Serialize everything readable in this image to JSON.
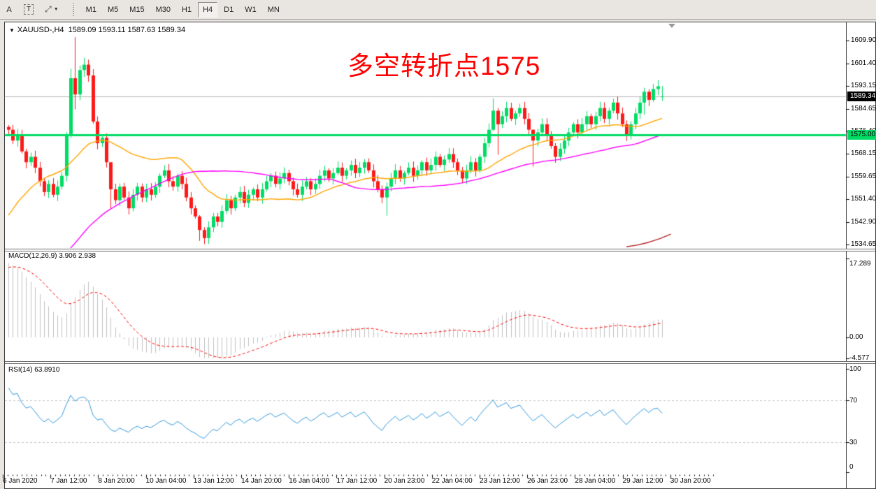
{
  "toolbar": {
    "tools": [
      {
        "label": "A",
        "name": "text-label-tool"
      },
      {
        "label": "T",
        "name": "text-tool"
      },
      {
        "label": "⤢",
        "name": "arrows-tool"
      }
    ],
    "timeframes": [
      {
        "label": "M1",
        "active": false
      },
      {
        "label": "M5",
        "active": false
      },
      {
        "label": "M15",
        "active": false
      },
      {
        "label": "M30",
        "active": false
      },
      {
        "label": "H1",
        "active": false
      },
      {
        "label": "H4",
        "active": true
      },
      {
        "label": "D1",
        "active": false
      },
      {
        "label": "W1",
        "active": false
      },
      {
        "label": "MN",
        "active": false
      }
    ]
  },
  "header": {
    "symbol": "XAUUSD-,H4",
    "ohlc": "1589.09 1593.11 1587.63 1589.34"
  },
  "annotation": {
    "text": "多空转折点1575",
    "color": "#FF0000"
  },
  "badges": {
    "current_price": "1589.34",
    "hline_price": "1575.00"
  },
  "macd_panel": {
    "label": "MACD(12,26,9)",
    "values": "3.906 2.938"
  },
  "rsi_panel": {
    "label": "RSI(14)",
    "value": "63.8910"
  },
  "chart_data": {
    "type": "candlestick+indicators",
    "symbol": "XAUUSD",
    "timeframe": "H4",
    "colors": {
      "bull": "#00DC64",
      "bear": "#FB1A1A",
      "hline": "#00DC64",
      "price_line": "#B4B4B4",
      "ma_fast": "#FFA500",
      "ma_slow": "#FF00FF",
      "ma_long": "#B22222",
      "macd_hist": "#C0C0C0",
      "macd_signal": "#FF0000",
      "rsi_line": "#2E96D9",
      "rsi_levels": "#C4C4C4"
    },
    "price_axis": {
      "ticks": [
        1609.9,
        1601.4,
        1593.15,
        1584.65,
        1576.4,
        1568.15,
        1559.65,
        1551.4,
        1542.9,
        1534.65
      ],
      "tick_labels": [
        "1609.90",
        "1601.40",
        "1593.15",
        "1584.65",
        "1576.40",
        "1568.15",
        "1559.65",
        "1551.40",
        "1542.90",
        "1534.65"
      ],
      "range": [
        1533.4,
        1616.3
      ]
    },
    "hline": {
      "price": 1575.0
    },
    "current_price": 1589.34,
    "macd": {
      "fast": 12,
      "slow": 26,
      "signal": 9,
      "last_main": 3.906,
      "last_signal": 2.938,
      "axis_ticks": [
        17.289,
        0.0,
        -4.577
      ],
      "axis_tick_labels": [
        "17.289",
        "0.00",
        "-4.577"
      ],
      "range": [
        -4.577,
        17.289
      ]
    },
    "rsi": {
      "period": 14,
      "last_value": 63.891,
      "axis_ticks": [
        100,
        70,
        30,
        0
      ],
      "axis_tick_labels": [
        "100",
        "70",
        "30",
        "0"
      ],
      "levels": [
        70,
        30
      ],
      "range": [
        0,
        104.7
      ]
    },
    "time_labels": [
      "6 Jan 2020",
      "7 Jan 12:00",
      "8 Jan 20:00",
      "10 Jan 04:00",
      "13 Jan 12:00",
      "14 Jan 20:00",
      "16 Jan 04:00",
      "17 Jan 12:00",
      "20 Jan 23:00",
      "22 Jan 04:00",
      "23 Jan 12:00",
      "26 Jan 23:00",
      "28 Jan 04:00",
      "29 Jan 12:00",
      "30 Jan 20:00"
    ],
    "preroll_closes": [
      1472,
      1474,
      1471,
      1475,
      1473,
      1476,
      1478,
      1475,
      1477,
      1480,
      1478,
      1481,
      1479,
      1482,
      1480,
      1483,
      1481,
      1484,
      1482,
      1485,
      1486,
      1489,
      1487,
      1492,
      1495,
      1493,
      1498,
      1501,
      1499,
      1504,
      1507,
      1505,
      1510,
      1508,
      1512,
      1515,
      1513,
      1518,
      1522,
      1520,
      1526,
      1530,
      1528,
      1534,
      1538,
      1536,
      1542,
      1546,
      1544,
      1550,
      1554,
      1552,
      1558,
      1562,
      1560,
      1566,
      1570,
      1568,
      1574,
      1578
    ],
    "closes": [
      1577,
      1573,
      1575,
      1569,
      1565,
      1567,
      1563,
      1558,
      1554,
      1557,
      1553,
      1556,
      1560,
      1575,
      1596,
      1590,
      1599,
      1601,
      1597,
      1580,
      1572,
      1574,
      1565,
      1555,
      1551,
      1556,
      1552,
      1548,
      1553,
      1556,
      1552,
      1555,
      1553,
      1556,
      1560,
      1562,
      1558,
      1556,
      1560,
      1557,
      1552,
      1548,
      1545,
      1540,
      1537,
      1541,
      1545,
      1543,
      1547,
      1551,
      1548,
      1552,
      1554,
      1550,
      1553,
      1555,
      1552,
      1555,
      1558,
      1560,
      1557,
      1559,
      1561,
      1558,
      1555,
      1553,
      1556,
      1558,
      1555,
      1557,
      1560,
      1562,
      1559,
      1561,
      1563,
      1560,
      1562,
      1564,
      1561,
      1563,
      1565,
      1562,
      1558,
      1555,
      1552,
      1556,
      1559,
      1562,
      1559,
      1561,
      1563,
      1560,
      1562,
      1565,
      1562,
      1564,
      1567,
      1564,
      1566,
      1568,
      1565,
      1562,
      1559,
      1562,
      1565,
      1562,
      1567,
      1572,
      1577,
      1584,
      1579,
      1582,
      1585,
      1581,
      1583,
      1585,
      1581,
      1577,
      1573,
      1576,
      1579,
      1575,
      1571,
      1567,
      1570,
      1573,
      1576,
      1579,
      1576,
      1579,
      1582,
      1579,
      1582,
      1585,
      1581,
      1584,
      1587,
      1583,
      1579,
      1575,
      1579,
      1583,
      1587,
      1591,
      1588,
      1592,
      1593,
      1589.34
    ],
    "wick_overrides": {
      "14": [
        1599.5,
        1574.0
      ],
      "15": [
        1611.2,
        1584.5
      ],
      "17": [
        1603.5,
        1596.5
      ],
      "23": [
        1556.5,
        1547.8
      ],
      "43": [
        1545.5,
        1536.0
      ],
      "44": [
        1541.0,
        1534.8
      ],
      "85": [
        1557.5,
        1545.3
      ],
      "109": [
        1588.5,
        1576.5
      ],
      "110": [
        1585.0,
        1567.8
      ],
      "118": [
        1577.0,
        1563.4
      ],
      "143": [
        1592.5,
        1582.5
      ]
    },
    "last_candle": {
      "o": 1589.09,
      "h": 1593.11,
      "l": 1587.63,
      "c": 1589.34
    },
    "moving_averages": {
      "fast_period": 26,
      "slow_period": 60,
      "long_segment": {
        "bar_from": 139,
        "price_from": 1533.8,
        "bar_to": 149,
        "price_to": 1538.5
      }
    }
  }
}
